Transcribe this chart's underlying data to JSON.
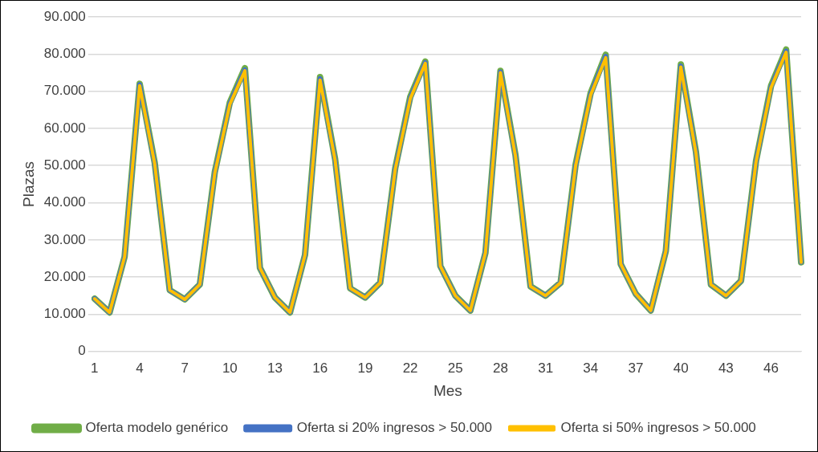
{
  "chart_data": {
    "type": "line",
    "xlabel": "Mes",
    "ylabel": "Plazas",
    "categories": [
      "1",
      null,
      null,
      "4",
      null,
      null,
      "7",
      null,
      null,
      "10",
      null,
      null,
      "13",
      null,
      null,
      "16",
      null,
      null,
      "19",
      null,
      null,
      "22",
      null,
      null,
      "25",
      null,
      null,
      "28",
      null,
      null,
      "31",
      null,
      null,
      "34",
      null,
      null,
      "37",
      null,
      null,
      "40",
      null,
      null,
      "43",
      null,
      null,
      "46",
      null,
      null
    ],
    "series": [
      {
        "name": "Oferta modelo genérico",
        "color": "#70ad47",
        "values": [
          14200,
          10500,
          25500,
          72000,
          50800,
          16500,
          14000,
          18000,
          48300,
          67000,
          76200,
          22500,
          14500,
          10500,
          26000,
          73800,
          51800,
          17000,
          14500,
          18500,
          49300,
          68500,
          78000,
          23000,
          15000,
          11000,
          26500,
          75500,
          52800,
          17500,
          15000,
          18500,
          50300,
          69500,
          79800,
          23500,
          15500,
          11000,
          27000,
          77200,
          53800,
          18000,
          15000,
          19000,
          51300,
          71500,
          81200,
          24000
        ]
      },
      {
        "name": "Oferta si 20% ingresos > 50.000",
        "color": "#4472c4",
        "values": [
          14200,
          10500,
          25500,
          71800,
          50600,
          16500,
          14000,
          18000,
          48100,
          66700,
          75800,
          22500,
          14500,
          10500,
          26000,
          73400,
          51600,
          17000,
          14500,
          18500,
          49100,
          68200,
          77700,
          23000,
          15000,
          11000,
          26500,
          75200,
          52600,
          17500,
          15000,
          18500,
          50100,
          69200,
          79400,
          23500,
          15500,
          11000,
          27000,
          76800,
          53600,
          18000,
          15000,
          19000,
          51100,
          71200,
          80800,
          24000
        ]
      },
      {
        "name": "Oferta si 50% ingresos > 50.000",
        "color": "#ffc000",
        "values": [
          14200,
          10500,
          25500,
          71500,
          50500,
          16500,
          14000,
          18000,
          48000,
          66500,
          75500,
          22500,
          14500,
          10500,
          26000,
          73000,
          51500,
          17000,
          14500,
          18500,
          49000,
          68000,
          77500,
          23000,
          15000,
          11000,
          26500,
          75000,
          52500,
          17500,
          15000,
          18500,
          50000,
          69000,
          79000,
          23500,
          15500,
          11000,
          27000,
          76500,
          53500,
          18000,
          15000,
          19000,
          51000,
          71000,
          80500,
          24000
        ]
      }
    ],
    "ylim": [
      0,
      90000
    ],
    "yticks": [
      {
        "value": 0,
        "label": "0"
      },
      {
        "value": 10000,
        "label": "10.000"
      },
      {
        "value": 20000,
        "label": "20.000"
      },
      {
        "value": 30000,
        "label": "30.000"
      },
      {
        "value": 40000,
        "label": "40.000"
      },
      {
        "value": 50000,
        "label": "50.000"
      },
      {
        "value": 60000,
        "label": "60.000"
      },
      {
        "value": 70000,
        "label": "70.000"
      },
      {
        "value": 80000,
        "label": "80.000"
      },
      {
        "value": 90000,
        "label": "90.000"
      }
    ],
    "grid": "y",
    "legend": "bottom",
    "marker": "none",
    "line_style": "solid"
  }
}
